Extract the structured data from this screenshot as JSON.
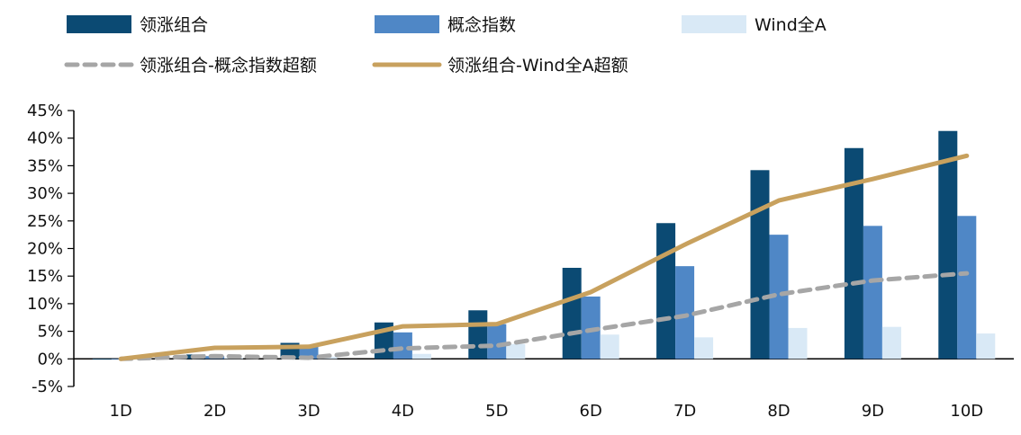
{
  "chart_data": {
    "type": "bar",
    "categories": [
      "1D",
      "2D",
      "3D",
      "4D",
      "5D",
      "6D",
      "7D",
      "8D",
      "9D",
      "10D"
    ],
    "series": [
      {
        "name": "领涨组合",
        "kind": "bar",
        "color": "#0b4a73",
        "values": [
          0.0,
          0.8,
          2.9,
          6.6,
          8.8,
          16.5,
          24.6,
          34.2,
          38.2,
          41.3
        ]
      },
      {
        "name": "概念指数",
        "kind": "bar",
        "color": "#4f87c6",
        "values": [
          0.0,
          0.5,
          2.5,
          4.8,
          6.3,
          11.3,
          16.8,
          22.5,
          24.1,
          25.9
        ]
      },
      {
        "name": "Wind全A",
        "kind": "bar",
        "color": "#d9e9f6",
        "values": [
          0.0,
          0.2,
          0.4,
          0.9,
          2.7,
          4.4,
          3.9,
          5.6,
          5.8,
          4.6
        ]
      },
      {
        "name": "领涨组合-概念指数超额",
        "kind": "line",
        "style": "dashed",
        "color": "#a6a6a6",
        "values": [
          0.0,
          0.5,
          0.2,
          1.9,
          2.4,
          5.2,
          7.8,
          11.7,
          14.2,
          15.5
        ]
      },
      {
        "name": "领涨组合-Wind全A超额",
        "kind": "line",
        "style": "solid",
        "color": "#c8a15e",
        "values": [
          0.0,
          2.0,
          2.2,
          5.9,
          6.3,
          12.1,
          20.7,
          28.7,
          32.6,
          36.8
        ]
      }
    ],
    "y_ticks": [
      "45%",
      "40%",
      "35%",
      "30%",
      "25%",
      "20%",
      "15%",
      "10%",
      "5%",
      "0%",
      "-5%"
    ],
    "ylim": [
      -5,
      45
    ],
    "title": "",
    "xlabel": "",
    "ylabel": "",
    "grid": false,
    "legend_position": "top"
  }
}
